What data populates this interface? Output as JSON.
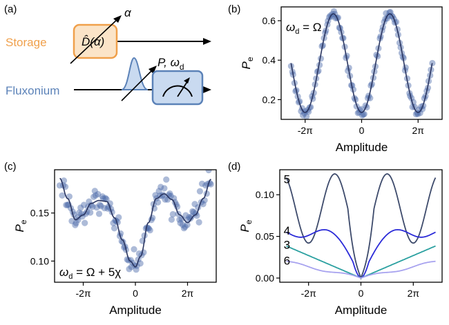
{
  "panel_labels": [
    "(a)",
    "(b)",
    "(c)",
    "(d)"
  ],
  "schematic": {
    "storage_label": "Storage",
    "fluxonium_label": "Fluxonium",
    "displacement_label": "D̂(α)",
    "alpha_label": "α",
    "pulse_label": "P, ω",
    "pulse_subscript": "d",
    "colors": {
      "storage": "#f0a04b",
      "storage_fill": "#fbe4c8",
      "fluxonium": "#5b82b8",
      "fluxonium_fill": "#c9daf0"
    }
  },
  "chart_data": [
    {
      "panel": "(b)",
      "type": "scatter",
      "xlabel": "Amplitude",
      "ylabel": "P",
      "ylabel_subscript": "e",
      "xlim": [
        -2.85,
        2.85
      ],
      "ylim": [
        0.1,
        0.67
      ],
      "x_ticks": [
        {
          "value": -2,
          "label": "-2π"
        },
        {
          "value": 0,
          "label": "0"
        },
        {
          "value": 2,
          "label": "2π"
        }
      ],
      "y_ticks": [
        {
          "value": 0.2,
          "label": "0.2"
        },
        {
          "value": 0.4,
          "label": "0.4"
        },
        {
          "value": 0.6,
          "label": "0.6"
        }
      ],
      "annotation": {
        "text": "ω",
        "subscript": "d",
        "rest": " = Ω"
      },
      "series": [
        {
          "kind": "points",
          "color": "#4a68a8",
          "x_range": [
            -2.5,
            2.5
          ],
          "n": 130,
          "model": "cos",
          "offset": 0.385,
          "amp": 0.255,
          "noise": 0.012
        },
        {
          "kind": "fit",
          "color": "#2a3560",
          "x_range": [
            -2.5,
            2.5
          ],
          "model": "cos",
          "offset": 0.385,
          "amp": 0.25
        }
      ]
    },
    {
      "panel": "(c)",
      "type": "scatter",
      "xlabel": "Amplitude",
      "ylabel": "P",
      "ylabel_subscript": "e",
      "xlim": [
        -3.1,
        3.1
      ],
      "ylim": [
        0.078,
        0.195
      ],
      "x_ticks": [
        {
          "value": -2,
          "label": "-2π"
        },
        {
          "value": 0,
          "label": "0"
        },
        {
          "value": 2,
          "label": "2π"
        }
      ],
      "y_ticks": [
        {
          "value": 0.1,
          "label": "0.10"
        },
        {
          "value": 0.15,
          "label": "0.15"
        }
      ],
      "annotation": {
        "text": "ω",
        "subscript": "d",
        "rest": " = Ω + 5χ"
      },
      "fit_knots": [
        [
          -2.9,
          0.186
        ],
        [
          -2.6,
          0.165
        ],
        [
          -2.3,
          0.143
        ],
        [
          -2.0,
          0.148
        ],
        [
          -1.7,
          0.16
        ],
        [
          -1.4,
          0.163
        ],
        [
          -1.1,
          0.162
        ],
        [
          -0.8,
          0.145
        ],
        [
          -0.5,
          0.122
        ],
        [
          -0.2,
          0.1
        ],
        [
          0.0,
          0.094
        ],
        [
          0.2,
          0.105
        ],
        [
          0.5,
          0.14
        ],
        [
          0.8,
          0.165
        ],
        [
          1.1,
          0.17
        ],
        [
          1.4,
          0.164
        ],
        [
          1.7,
          0.148
        ],
        [
          2.0,
          0.14
        ],
        [
          2.3,
          0.148
        ],
        [
          2.6,
          0.165
        ],
        [
          2.9,
          0.185
        ]
      ],
      "series": [
        {
          "kind": "points",
          "color": "#4a68a8",
          "x_range": [
            -2.9,
            2.9
          ],
          "n": 140,
          "noise": 0.006
        },
        {
          "kind": "fit",
          "color": "#2a3560",
          "x_range": [
            -2.9,
            2.9
          ]
        }
      ]
    },
    {
      "panel": "(d)",
      "type": "line",
      "xlabel": "Amplitude",
      "ylabel": "P",
      "ylabel_subscript": "e",
      "xlim": [
        -3.1,
        3.1
      ],
      "ylim": [
        -0.005,
        0.13
      ],
      "x_ticks": [
        {
          "value": -2,
          "label": "-2π"
        },
        {
          "value": 0,
          "label": "0"
        },
        {
          "value": 2,
          "label": "2π"
        }
      ],
      "y_ticks": [
        {
          "value": 0.0,
          "label": "0.00"
        },
        {
          "value": 0.05,
          "label": "0.05"
        },
        {
          "value": 0.1,
          "label": "0.10"
        }
      ],
      "series": [
        {
          "name": "5",
          "color": "#3d4a6b",
          "x_range": [
            -2.85,
            2.85
          ],
          "model": "osc5"
        },
        {
          "name": "4",
          "color": "#2a2ad8",
          "x_range": [
            -2.85,
            2.85
          ],
          "model": "osc4"
        },
        {
          "name": "3",
          "color": "#2aa0a0",
          "x_range": [
            -2.85,
            2.85
          ],
          "model": "lin3"
        },
        {
          "name": "6",
          "color": "#a7a2ef",
          "x_range": [
            -2.85,
            2.85
          ],
          "model": "lin6"
        }
      ],
      "series_label_positions": [
        {
          "name": "5",
          "x": -2.95,
          "y": 0.119
        },
        {
          "name": "4",
          "x": -2.95,
          "y": 0.057
        },
        {
          "name": "3",
          "x": -2.95,
          "y": 0.04
        },
        {
          "name": "6",
          "x": -2.95,
          "y": 0.021
        }
      ]
    }
  ]
}
